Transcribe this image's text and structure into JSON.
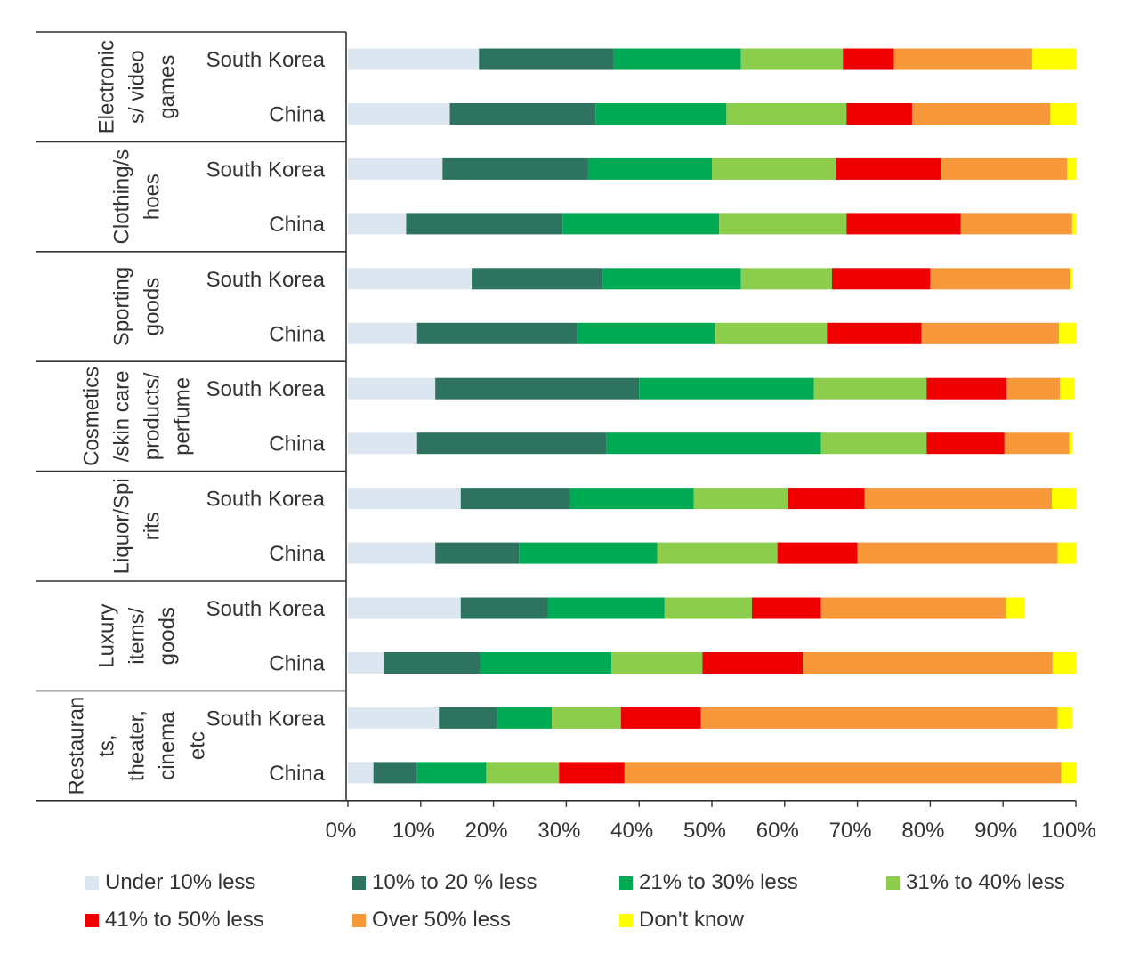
{
  "chart_data": {
    "type": "bar",
    "orientation": "horizontal",
    "stacked": true,
    "title": "",
    "xlabel": "",
    "ylabel": "",
    "xlim": [
      0,
      100
    ],
    "x_tick_labels": [
      "0%",
      "10%",
      "20%",
      "30%",
      "40%",
      "50%",
      "60%",
      "70%",
      "80%",
      "90%",
      "100%"
    ],
    "legend_position": "bottom",
    "grid": false,
    "groups": [
      {
        "name": "Electronic s/ video games",
        "lines": [
          "Electronic",
          "s/ video",
          "games"
        ]
      },
      {
        "name": "Clothing/s hoes",
        "lines": [
          "Clothing/s",
          "hoes"
        ]
      },
      {
        "name": "Sporting goods",
        "lines": [
          "Sporting",
          "goods"
        ]
      },
      {
        "name": "Cosmetics /skin care products/ perfume",
        "lines": [
          "Cosmetics",
          "/skin care",
          "products/",
          "perfume"
        ]
      },
      {
        "name": "Liquor/Spi rits",
        "lines": [
          "Liquor/Spi",
          "rits"
        ]
      },
      {
        "name": "Luxury items/ goods",
        "lines": [
          "Luxury",
          "items/",
          "goods"
        ]
      },
      {
        "name": "Restauran ts, theater, cinema etc",
        "lines": [
          "Restauran",
          "ts,",
          "theater,",
          "cinema",
          "etc"
        ]
      }
    ],
    "countries": [
      "South Korea",
      "China"
    ],
    "series": [
      {
        "name": "Under 10% less",
        "color": "#DCE6F1",
        "values": [
          18,
          14,
          13,
          8,
          17,
          9.5,
          12,
          9.5,
          15.5,
          12,
          15.5,
          5,
          12.5,
          3.5
        ]
      },
      {
        "name": "10% to 20 % less",
        "color": "#2E7360",
        "values": [
          18.5,
          20,
          20,
          21.5,
          18,
          22,
          28,
          26,
          15,
          11.5,
          12,
          13.2,
          8,
          6
        ]
      },
      {
        "name": "21% to 30% less",
        "color": "#00AA55",
        "values": [
          17.5,
          18,
          17,
          21.5,
          19,
          19,
          24,
          29.5,
          17,
          19,
          16,
          18,
          7.5,
          9.5
        ]
      },
      {
        "name": "31% to 40% less",
        "color": "#8CCD4B",
        "values": [
          14,
          16.5,
          17,
          17.5,
          12.5,
          15.3,
          15.5,
          14.5,
          13,
          16.5,
          12,
          12.5,
          9.5,
          10
        ]
      },
      {
        "name": "41% to 50% less",
        "color": "#EE0000",
        "values": [
          7,
          9,
          14.5,
          15.7,
          13.5,
          13,
          11,
          10.7,
          10.5,
          11,
          9.5,
          13.8,
          11,
          9
        ]
      },
      {
        "name": "Over 50% less",
        "color": "#F7993A",
        "values": [
          19,
          19,
          17.3,
          15.3,
          19.2,
          18.9,
          7.3,
          8.9,
          25.7,
          27.5,
          25.4,
          34.3,
          49,
          60
        ]
      },
      {
        "name": "Don't know",
        "color": "#FFFF00",
        "values": [
          6,
          3.5,
          1.2,
          0.5,
          0.3,
          2.3,
          2,
          0.4,
          3.3,
          2.5,
          2.6,
          3.2,
          2,
          2
        ]
      }
    ]
  }
}
